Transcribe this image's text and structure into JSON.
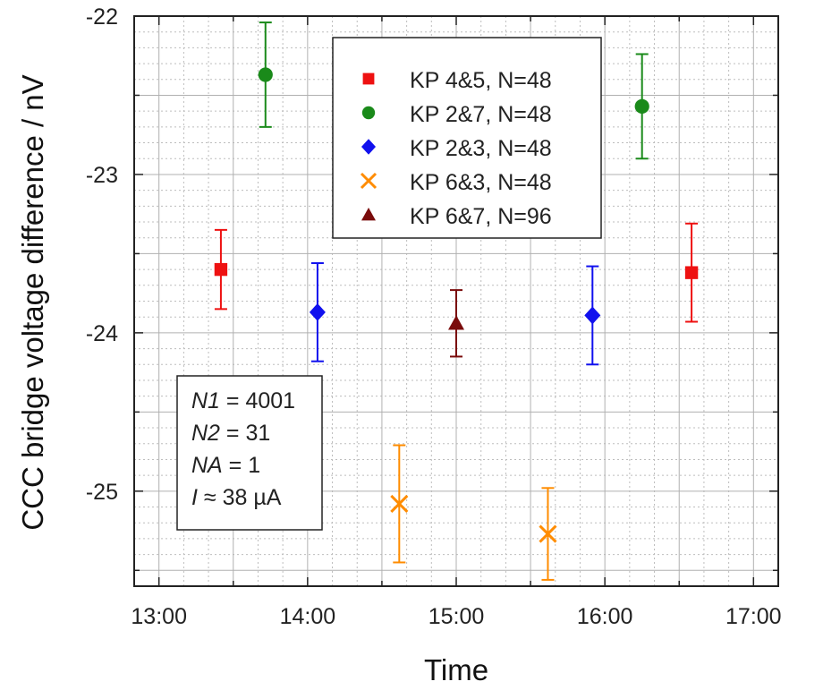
{
  "chart_data": {
    "type": "scatter",
    "xlabel": "Time",
    "ylabel": "CCC bridge voltage difference / nV",
    "xlim": [
      "12:50",
      "17:10"
    ],
    "ylim": [
      -25.6,
      -22.0
    ],
    "x_ticks": [
      "13:00",
      "14:00",
      "15:00",
      "16:00",
      "17:00"
    ],
    "y_ticks": [
      "-25",
      "-24",
      "-23",
      "-22"
    ],
    "grid": "on (major solid, minor dotted)",
    "legend_position": "top-center",
    "series": [
      {
        "name": "KP 4&5, N=48",
        "marker": "square",
        "color": "#ee1111",
        "points": [
          {
            "x": "13:25",
            "y": -23.6,
            "err": 0.25
          },
          {
            "x": "16:35",
            "y": -23.62,
            "err": 0.31
          }
        ]
      },
      {
        "name": "KP 2&7, N=48",
        "marker": "circle",
        "color": "#1a8a1a",
        "points": [
          {
            "x": "13:43",
            "y": -22.37,
            "err": 0.33
          },
          {
            "x": "16:15",
            "y": -22.57,
            "err": 0.33
          }
        ]
      },
      {
        "name": "KP 2&3, N=48",
        "marker": "diamond",
        "color": "#1111ee",
        "points": [
          {
            "x": "14:04",
            "y": -23.87,
            "err": 0.31
          },
          {
            "x": "15:55",
            "y": -23.89,
            "err": 0.31
          }
        ]
      },
      {
        "name": "KP 6&3, N=48",
        "marker": "x",
        "color": "#ff8c00",
        "points": [
          {
            "x": "14:37",
            "y": -25.08,
            "err": 0.37
          },
          {
            "x": "15:37",
            "y": -25.27,
            "err": 0.29
          }
        ]
      },
      {
        "name": "KP 6&7, N=96",
        "marker": "triangle",
        "color": "#7a0b0b",
        "points": [
          {
            "x": "15:00",
            "y": -23.94,
            "err": 0.21
          }
        ]
      }
    ],
    "annotation": [
      {
        "italic": "N1",
        "rest": " = 4001"
      },
      {
        "italic": "N2",
        "rest": " = 31"
      },
      {
        "italic": "NA",
        "rest": " = 1"
      },
      {
        "italic": "I",
        "rest": " ≈ 38 µA"
      }
    ]
  }
}
